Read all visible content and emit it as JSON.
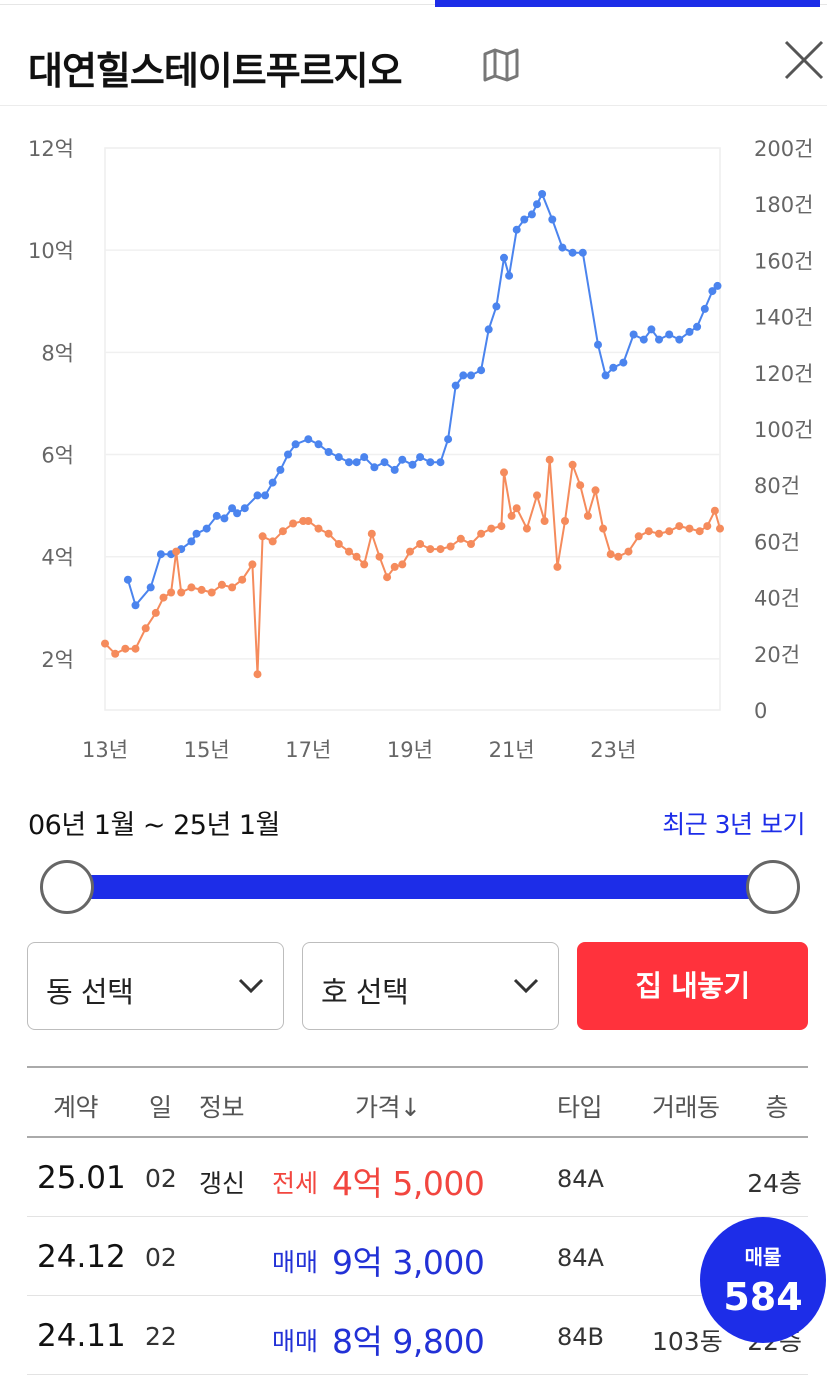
{
  "header": {
    "title": "대연힐스테이트푸르지오",
    "map_icon": "map-icon",
    "close_icon": "close-icon"
  },
  "chart_data": {
    "type": "line",
    "left_axis_ticks": [
      "2억",
      "4억",
      "6억",
      "8억",
      "10억",
      "12억"
    ],
    "right_axis_ticks": [
      "0",
      "20건",
      "40건",
      "60건",
      "80건",
      "100건",
      "120건",
      "140건",
      "160건",
      "180건",
      "200건"
    ],
    "x_ticks": [
      "13년",
      "15년",
      "17년",
      "19년",
      "21년",
      "23년"
    ],
    "ylim_left": [
      1,
      12
    ],
    "ylim_right": [
      0,
      200
    ],
    "xlim": [
      2013.0,
      2025.1
    ],
    "colors": {
      "sale": "#4b84ee",
      "jeonse": "#f58b5c"
    },
    "series": [
      {
        "key": "sale",
        "points": [
          [
            2013.45,
            3.55
          ],
          [
            2013.6,
            3.05
          ],
          [
            2013.9,
            3.4
          ],
          [
            2014.1,
            4.05
          ],
          [
            2014.3,
            4.05
          ],
          [
            2014.5,
            4.15
          ],
          [
            2014.7,
            4.3
          ],
          [
            2014.8,
            4.45
          ],
          [
            2015.0,
            4.55
          ],
          [
            2015.2,
            4.8
          ],
          [
            2015.35,
            4.75
          ],
          [
            2015.5,
            4.95
          ],
          [
            2015.6,
            4.85
          ],
          [
            2015.75,
            4.95
          ],
          [
            2016.0,
            5.2
          ],
          [
            2016.15,
            5.2
          ],
          [
            2016.3,
            5.45
          ],
          [
            2016.45,
            5.7
          ],
          [
            2016.6,
            6.0
          ],
          [
            2016.75,
            6.2
          ],
          [
            2017.0,
            6.3
          ],
          [
            2017.2,
            6.2
          ],
          [
            2017.4,
            6.05
          ],
          [
            2017.6,
            5.95
          ],
          [
            2017.8,
            5.85
          ],
          [
            2017.95,
            5.85
          ],
          [
            2018.1,
            5.95
          ],
          [
            2018.3,
            5.75
          ],
          [
            2018.5,
            5.85
          ],
          [
            2018.7,
            5.7
          ],
          [
            2018.85,
            5.9
          ],
          [
            2019.05,
            5.8
          ],
          [
            2019.2,
            5.95
          ],
          [
            2019.4,
            5.85
          ],
          [
            2019.6,
            5.85
          ],
          [
            2019.75,
            6.3
          ],
          [
            2019.9,
            7.35
          ],
          [
            2020.05,
            7.55
          ],
          [
            2020.2,
            7.55
          ],
          [
            2020.4,
            7.65
          ],
          [
            2020.55,
            8.45
          ],
          [
            2020.7,
            8.9
          ],
          [
            2020.85,
            9.85
          ],
          [
            2020.95,
            9.5
          ],
          [
            2021.1,
            10.4
          ],
          [
            2021.25,
            10.6
          ],
          [
            2021.4,
            10.7
          ],
          [
            2021.5,
            10.9
          ],
          [
            2021.6,
            11.1
          ],
          [
            2021.8,
            10.6
          ],
          [
            2022.0,
            10.05
          ],
          [
            2022.2,
            9.95
          ],
          [
            2022.4,
            9.95
          ],
          [
            2022.7,
            8.15
          ],
          [
            2022.85,
            7.55
          ],
          [
            2023.0,
            7.7
          ],
          [
            2023.2,
            7.8
          ],
          [
            2023.4,
            8.35
          ],
          [
            2023.6,
            8.25
          ],
          [
            2023.75,
            8.45
          ],
          [
            2023.9,
            8.25
          ],
          [
            2024.1,
            8.35
          ],
          [
            2024.3,
            8.25
          ],
          [
            2024.5,
            8.4
          ],
          [
            2024.65,
            8.5
          ],
          [
            2024.8,
            8.85
          ],
          [
            2024.95,
            9.2
          ],
          [
            2025.05,
            9.3
          ]
        ]
      },
      {
        "key": "jeonse",
        "points": [
          [
            2013.0,
            2.3
          ],
          [
            2013.2,
            2.1
          ],
          [
            2013.4,
            2.2
          ],
          [
            2013.6,
            2.2
          ],
          [
            2013.8,
            2.6
          ],
          [
            2014.0,
            2.9
          ],
          [
            2014.15,
            3.2
          ],
          [
            2014.3,
            3.3
          ],
          [
            2014.4,
            4.1
          ],
          [
            2014.5,
            3.3
          ],
          [
            2014.7,
            3.4
          ],
          [
            2014.9,
            3.35
          ],
          [
            2015.1,
            3.3
          ],
          [
            2015.3,
            3.45
          ],
          [
            2015.5,
            3.4
          ],
          [
            2015.7,
            3.55
          ],
          [
            2015.9,
            3.85
          ],
          [
            2016.0,
            1.7
          ],
          [
            2016.1,
            4.4
          ],
          [
            2016.3,
            4.3
          ],
          [
            2016.5,
            4.5
          ],
          [
            2016.7,
            4.65
          ],
          [
            2016.9,
            4.7
          ],
          [
            2017.0,
            4.7
          ],
          [
            2017.2,
            4.55
          ],
          [
            2017.4,
            4.45
          ],
          [
            2017.6,
            4.25
          ],
          [
            2017.8,
            4.1
          ],
          [
            2017.95,
            4.0
          ],
          [
            2018.1,
            3.85
          ],
          [
            2018.25,
            4.45
          ],
          [
            2018.4,
            4.0
          ],
          [
            2018.55,
            3.6
          ],
          [
            2018.7,
            3.8
          ],
          [
            2018.85,
            3.85
          ],
          [
            2019.0,
            4.1
          ],
          [
            2019.2,
            4.25
          ],
          [
            2019.4,
            4.15
          ],
          [
            2019.6,
            4.15
          ],
          [
            2019.8,
            4.2
          ],
          [
            2020.0,
            4.35
          ],
          [
            2020.2,
            4.25
          ],
          [
            2020.4,
            4.45
          ],
          [
            2020.6,
            4.55
          ],
          [
            2020.8,
            4.6
          ],
          [
            2020.85,
            5.65
          ],
          [
            2021.0,
            4.8
          ],
          [
            2021.1,
            4.95
          ],
          [
            2021.3,
            4.55
          ],
          [
            2021.5,
            5.2
          ],
          [
            2021.65,
            4.7
          ],
          [
            2021.75,
            5.9
          ],
          [
            2021.9,
            3.8
          ],
          [
            2022.05,
            4.7
          ],
          [
            2022.2,
            5.8
          ],
          [
            2022.35,
            5.4
          ],
          [
            2022.5,
            4.8
          ],
          [
            2022.65,
            5.3
          ],
          [
            2022.8,
            4.55
          ],
          [
            2022.95,
            4.05
          ],
          [
            2023.1,
            4.0
          ],
          [
            2023.3,
            4.1
          ],
          [
            2023.5,
            4.4
          ],
          [
            2023.7,
            4.5
          ],
          [
            2023.9,
            4.45
          ],
          [
            2024.1,
            4.5
          ],
          [
            2024.3,
            4.6
          ],
          [
            2024.5,
            4.55
          ],
          [
            2024.7,
            4.5
          ],
          [
            2024.85,
            4.6
          ],
          [
            2025.0,
            4.9
          ],
          [
            2025.1,
            4.55
          ]
        ]
      }
    ]
  },
  "period": {
    "range_label": "06년 1월 ~ 25년 1월",
    "recent_label": "최근 3년 보기",
    "start_fraction": 0.0,
    "end_fraction": 1.0
  },
  "filters": {
    "dong_label": "동 선택",
    "ho_label": "호 선택",
    "list_button_label": "집 내놓기",
    "chevron_icon": "chevron-down-icon"
  },
  "table": {
    "headers": {
      "contract": "계약",
      "day": "일",
      "info": "정보",
      "price": "가격↓",
      "type": "타입",
      "dong": "거래동",
      "floor": "층"
    },
    "rows": [
      {
        "date": "25.01",
        "day": "02",
        "info": "갱신",
        "kind": "전세",
        "price": "4억 5,000",
        "type": "84A",
        "dong": "",
        "floor": "24층"
      },
      {
        "date": "24.12",
        "day": "02",
        "info": "",
        "kind": "매매",
        "price": "9억 3,000",
        "type": "84A",
        "dong": "",
        "floor": ""
      },
      {
        "date": "24.11",
        "day": "22",
        "info": "",
        "kind": "매매",
        "price": "8억 9,800",
        "type": "84B",
        "dong": "103동",
        "floor": "22층"
      }
    ]
  },
  "listing_fab": {
    "label": "매물",
    "count": "584"
  }
}
